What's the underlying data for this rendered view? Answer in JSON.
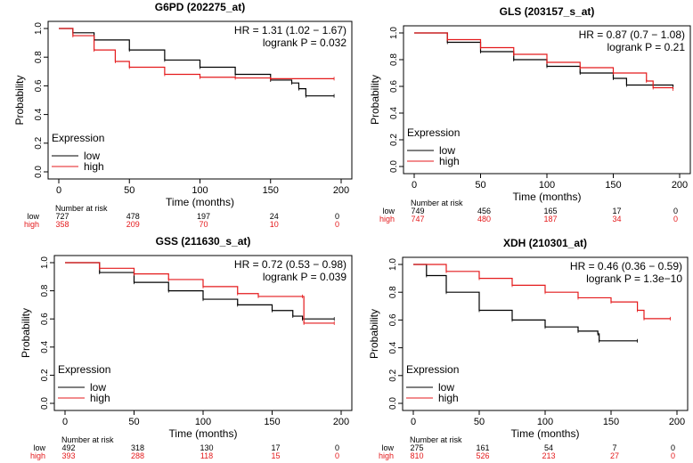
{
  "chart_data": [
    {
      "type": "line",
      "title": "G6PD (202275_at)",
      "xlabel": "Time (months)",
      "ylabel": "Probability",
      "xlim": [
        0,
        200
      ],
      "ylim": [
        0,
        1
      ],
      "xticks": [
        "0",
        "50",
        "100",
        "150",
        "200"
      ],
      "yticks": [
        "0.0",
        "0.2",
        "0.4",
        "0.6",
        "0.8",
        "1.0"
      ],
      "hr": "HR = 1.31 (1.02 − 1.67)",
      "logrank": "logrank P = 0.032",
      "legend_title": "Expression",
      "legend_position": "bottom-left",
      "series": [
        {
          "name": "low",
          "color": "#000000",
          "points": [
            [
              0,
              1
            ],
            [
              10,
              0.97
            ],
            [
              25,
              0.92
            ],
            [
              50,
              0.85
            ],
            [
              75,
              0.78
            ],
            [
              100,
              0.73
            ],
            [
              125,
              0.68
            ],
            [
              150,
              0.64
            ],
            [
              165,
              0.62
            ],
            [
              170,
              0.58
            ],
            [
              175,
              0.53
            ],
            [
              195,
              0.53
            ]
          ]
        },
        {
          "name": "high",
          "color": "#e41a1c",
          "points": [
            [
              0,
              1
            ],
            [
              10,
              0.95
            ],
            [
              25,
              0.85
            ],
            [
              40,
              0.77
            ],
            [
              50,
              0.73
            ],
            [
              75,
              0.68
            ],
            [
              100,
              0.66
            ],
            [
              125,
              0.655
            ],
            [
              150,
              0.65
            ],
            [
              195,
              0.65
            ]
          ]
        }
      ],
      "risk_title": "Number at risk",
      "risk": [
        {
          "label": "low",
          "values": [
            "727",
            "478",
            "197",
            "24",
            "0"
          ]
        },
        {
          "label": "high",
          "values": [
            "358",
            "209",
            "70",
            "10",
            "0"
          ]
        }
      ]
    },
    {
      "type": "line",
      "title": "GLS (203157_s_at)",
      "xlabel": "Time (months)",
      "ylabel": "Probability",
      "xlim": [
        0,
        200
      ],
      "ylim": [
        0,
        1
      ],
      "xticks": [
        "0",
        "50",
        "100",
        "150",
        "200"
      ],
      "yticks": [
        "0.0",
        "0.2",
        "0.4",
        "0.6",
        "0.8",
        "1.0"
      ],
      "hr": "HR = 0.87 (0.7 − 1.08)",
      "logrank": "logrank P = 0.21",
      "legend_title": "Expression",
      "legend_position": "bottom-left",
      "series": [
        {
          "name": "low",
          "color": "#000000",
          "points": [
            [
              0,
              1
            ],
            [
              25,
              0.93
            ],
            [
              50,
              0.86
            ],
            [
              75,
              0.8
            ],
            [
              100,
              0.75
            ],
            [
              125,
              0.7
            ],
            [
              150,
              0.66
            ],
            [
              160,
              0.61
            ],
            [
              195,
              0.6
            ]
          ]
        },
        {
          "name": "high",
          "color": "#e41a1c",
          "points": [
            [
              0,
              1
            ],
            [
              25,
              0.95
            ],
            [
              50,
              0.89
            ],
            [
              75,
              0.84
            ],
            [
              100,
              0.78
            ],
            [
              125,
              0.74
            ],
            [
              150,
              0.7
            ],
            [
              175,
              0.64
            ],
            [
              180,
              0.59
            ],
            [
              195,
              0.58
            ]
          ]
        }
      ],
      "risk_title": "Number at risk",
      "risk": [
        {
          "label": "low",
          "values": [
            "749",
            "456",
            "165",
            "17",
            "0"
          ]
        },
        {
          "label": "high",
          "values": [
            "747",
            "480",
            "187",
            "34",
            "0"
          ]
        }
      ]
    },
    {
      "type": "line",
      "title": "GSS (211630_s_at)",
      "xlabel": "Time (months)",
      "ylabel": "Probability",
      "xlim": [
        0,
        200
      ],
      "ylim": [
        0,
        1
      ],
      "xticks": [
        "0",
        "50",
        "100",
        "150",
        "200"
      ],
      "yticks": [
        "0.0",
        "0.2",
        "0.4",
        "0.6",
        "0.8",
        "1.0"
      ],
      "hr": "HR = 0.72 (0.53 − 0.98)",
      "logrank": "logrank P = 0.039",
      "legend_title": "Expression",
      "legend_position": "bottom-left",
      "series": [
        {
          "name": "low",
          "color": "#000000",
          "points": [
            [
              0,
              1
            ],
            [
              25,
              0.93
            ],
            [
              50,
              0.86
            ],
            [
              75,
              0.8
            ],
            [
              100,
              0.74
            ],
            [
              125,
              0.7
            ],
            [
              150,
              0.66
            ],
            [
              165,
              0.62
            ],
            [
              172,
              0.6
            ],
            [
              195,
              0.6
            ]
          ]
        },
        {
          "name": "high",
          "color": "#e41a1c",
          "points": [
            [
              0,
              1
            ],
            [
              25,
              0.96
            ],
            [
              50,
              0.92
            ],
            [
              75,
              0.88
            ],
            [
              100,
              0.83
            ],
            [
              125,
              0.78
            ],
            [
              140,
              0.76
            ],
            [
              172,
              0.76
            ],
            [
              173,
              0.57
            ],
            [
              195,
              0.57
            ]
          ]
        }
      ],
      "risk_title": "Number at risk",
      "risk": [
        {
          "label": "low",
          "values": [
            "492",
            "318",
            "130",
            "17",
            "0"
          ]
        },
        {
          "label": "high",
          "values": [
            "393",
            "288",
            "118",
            "15",
            "0"
          ]
        }
      ]
    },
    {
      "type": "line",
      "title": "XDH (210301_at)",
      "xlabel": "Time (months)",
      "ylabel": "Probability",
      "xlim": [
        0,
        200
      ],
      "ylim": [
        0,
        1
      ],
      "xticks": [
        "0",
        "50",
        "100",
        "150",
        "200"
      ],
      "yticks": [
        "0.0",
        "0.2",
        "0.4",
        "0.6",
        "0.8",
        "1.0"
      ],
      "hr": "HR = 0.46 (0.36 − 0.59)",
      "logrank": "logrank P = 1.3e−10",
      "legend_title": "Expression",
      "legend_position": "bottom-left",
      "series": [
        {
          "name": "low",
          "color": "#000000",
          "points": [
            [
              0,
              1
            ],
            [
              10,
              0.92
            ],
            [
              25,
              0.8
            ],
            [
              50,
              0.67
            ],
            [
              75,
              0.6
            ],
            [
              100,
              0.55
            ],
            [
              125,
              0.52
            ],
            [
              140,
              0.5
            ],
            [
              141,
              0.45
            ],
            [
              170,
              0.45
            ]
          ]
        },
        {
          "name": "high",
          "color": "#e41a1c",
          "points": [
            [
              0,
              1
            ],
            [
              25,
              0.95
            ],
            [
              50,
              0.9
            ],
            [
              75,
              0.85
            ],
            [
              100,
              0.8
            ],
            [
              125,
              0.76
            ],
            [
              150,
              0.73
            ],
            [
              170,
              0.67
            ],
            [
              175,
              0.61
            ],
            [
              195,
              0.61
            ]
          ]
        }
      ],
      "risk_title": "Number at risk",
      "risk": [
        {
          "label": "low",
          "values": [
            "275",
            "161",
            "54",
            "7",
            "0"
          ]
        },
        {
          "label": "high",
          "values": [
            "810",
            "526",
            "213",
            "27",
            "0"
          ]
        }
      ]
    }
  ]
}
